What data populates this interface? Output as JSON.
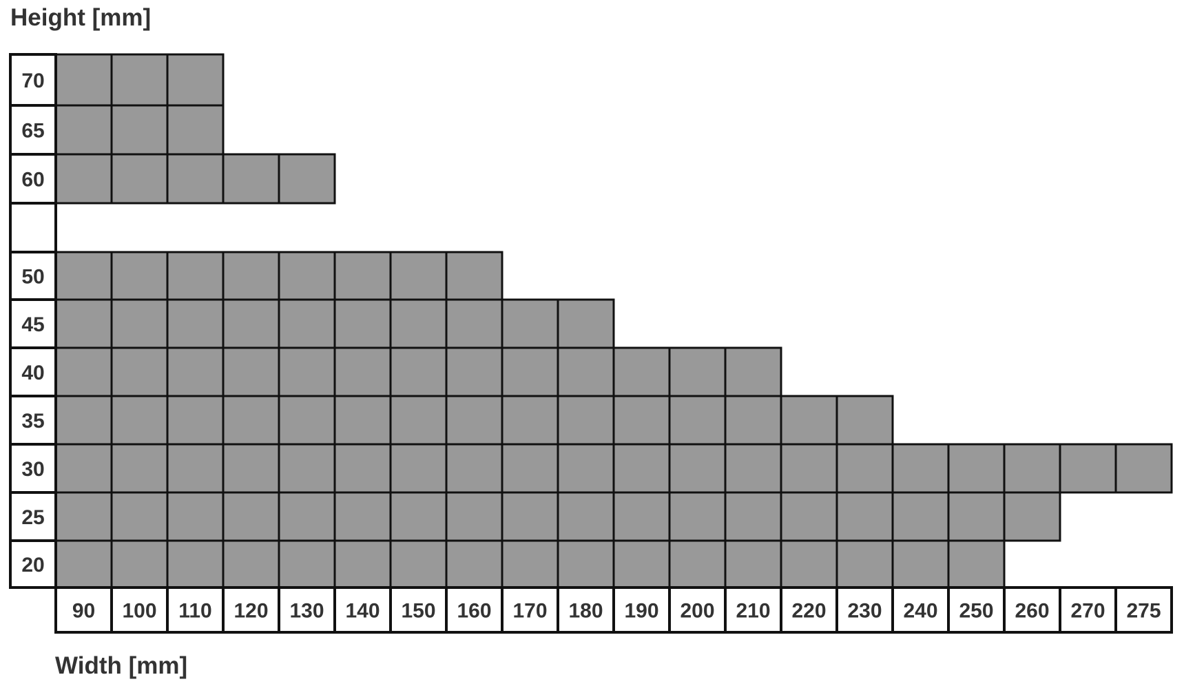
{
  "labels": {
    "y_title": "Height [mm]",
    "x_title": "Width [mm]"
  },
  "colors": {
    "fill": "#999999",
    "grid": "#111111",
    "outline_accent": "#4a6a95",
    "label": "#333333",
    "background": "#ffffff"
  },
  "chart_data": {
    "type": "heatmap",
    "widths": [
      "90",
      "100",
      "110",
      "120",
      "130",
      "140",
      "150",
      "160",
      "170",
      "180",
      "190",
      "200",
      "210",
      "220",
      "230",
      "240",
      "250",
      "260",
      "270",
      "275"
    ],
    "heights": [
      "70",
      "65",
      "60",
      "",
      "50",
      "45",
      "40",
      "35",
      "30",
      "25",
      "20"
    ],
    "available_widths_by_height": {
      "70": [
        "90",
        "100",
        "110"
      ],
      "65": [
        "90",
        "100",
        "110"
      ],
      "60": [
        "90",
        "100",
        "110",
        "120",
        "130"
      ],
      "": [],
      "50": [
        "90",
        "100",
        "110",
        "120",
        "130",
        "140",
        "150",
        "160"
      ],
      "45": [
        "90",
        "100",
        "110",
        "120",
        "130",
        "140",
        "150",
        "160",
        "170",
        "180"
      ],
      "40": [
        "90",
        "100",
        "110",
        "120",
        "130",
        "140",
        "150",
        "160",
        "170",
        "180",
        "190",
        "200",
        "210"
      ],
      "35": [
        "90",
        "100",
        "110",
        "120",
        "130",
        "140",
        "150",
        "160",
        "170",
        "180",
        "190",
        "200",
        "210",
        "220",
        "230"
      ],
      "30": [
        "90",
        "100",
        "110",
        "120",
        "130",
        "140",
        "150",
        "160",
        "170",
        "180",
        "190",
        "200",
        "210",
        "220",
        "230",
        "240",
        "250",
        "260",
        "270",
        "275"
      ],
      "25": [
        "90",
        "100",
        "110",
        "120",
        "130",
        "140",
        "150",
        "160",
        "170",
        "180",
        "190",
        "200",
        "210",
        "220",
        "230",
        "240",
        "250",
        "260"
      ],
      "20": [
        "90",
        "100",
        "110",
        "120",
        "130",
        "140",
        "150",
        "160",
        "170",
        "180",
        "190",
        "200",
        "210",
        "220",
        "230",
        "240",
        "250"
      ]
    }
  }
}
